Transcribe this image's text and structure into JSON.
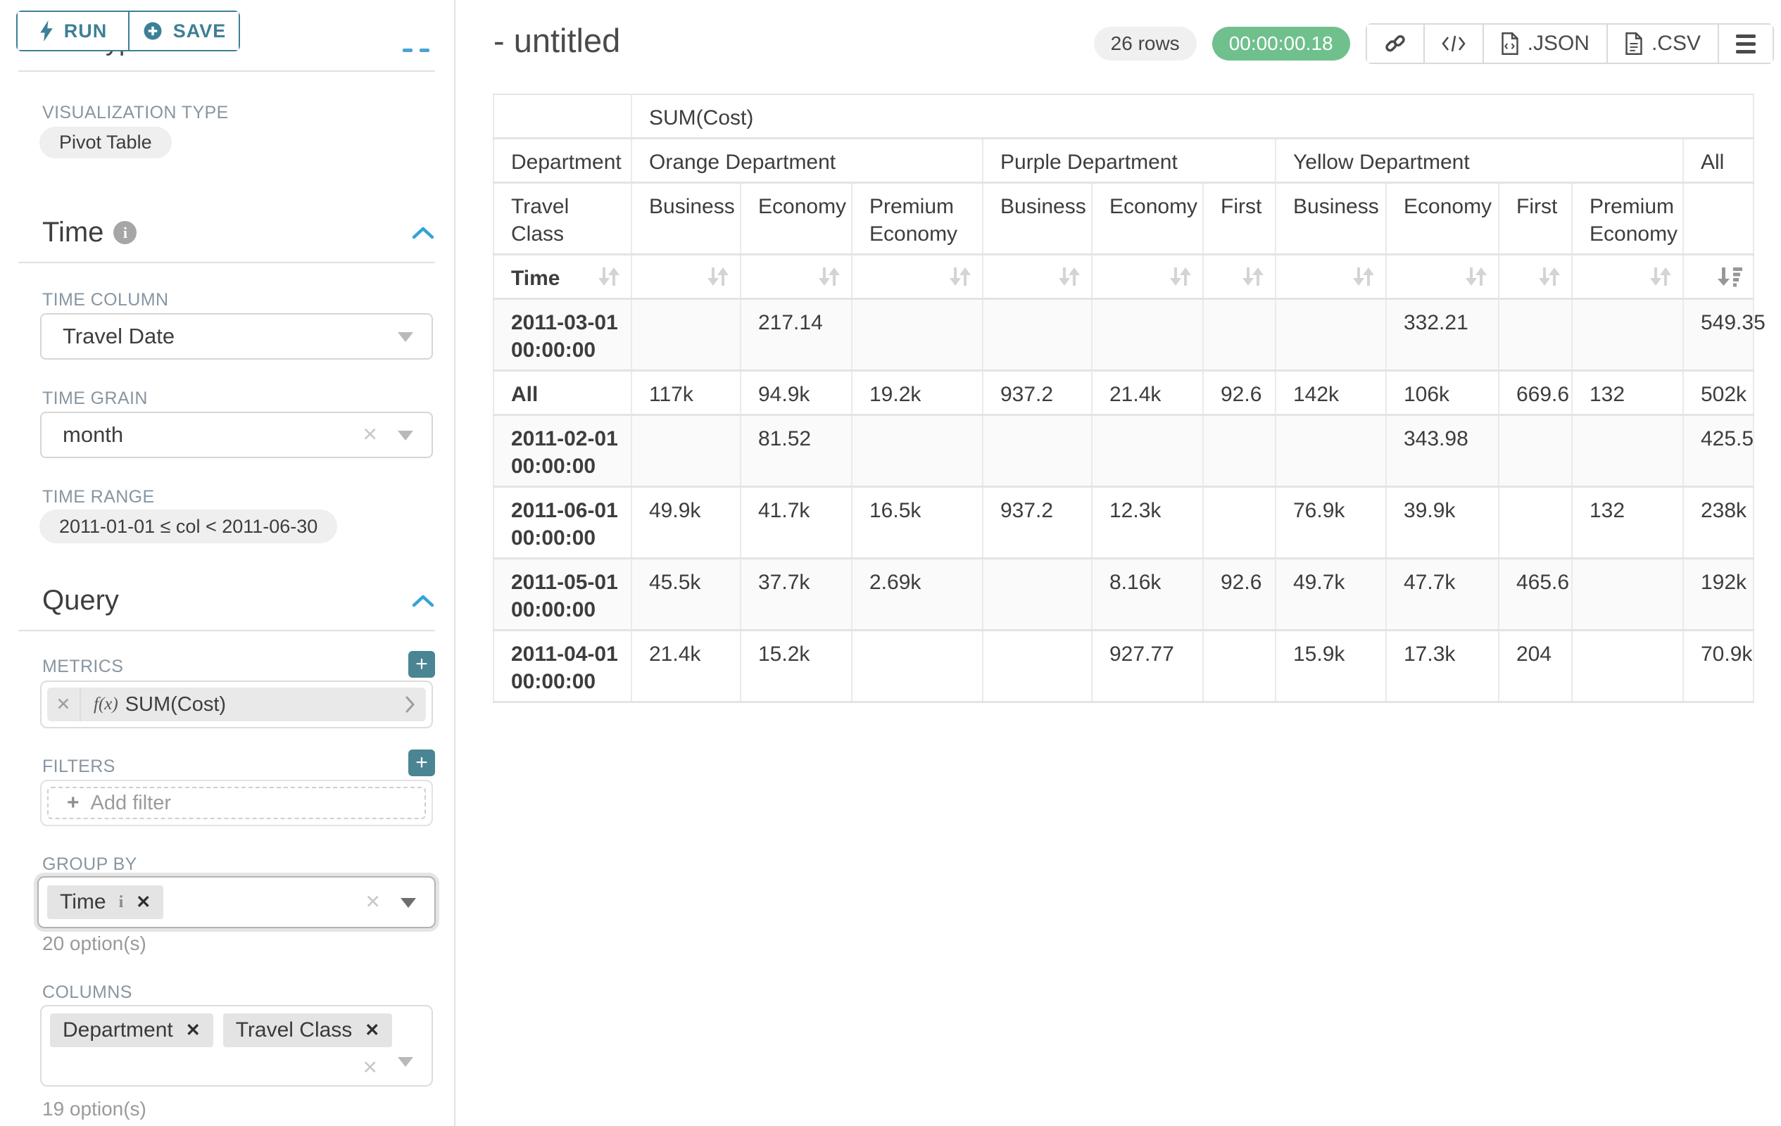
{
  "colors": {
    "accent": "#3d7f96",
    "accent_fill": "#4a8594",
    "section_caret_blue": "#35a3d6",
    "timer_green": "#6fc08d"
  },
  "sidebar": {
    "run_button": "RUN",
    "save_button": "SAVE",
    "chart_type_heading": "Chart Type",
    "visualization_type_label": "VISUALIZATION TYPE",
    "visualization_type_value": "Pivot Table",
    "time_section": {
      "title": "Time",
      "time_column_label": "TIME COLUMN",
      "time_column_value": "Travel Date",
      "time_grain_label": "TIME GRAIN",
      "time_grain_value": "month",
      "time_range_label": "TIME RANGE",
      "time_range_value": "2011-01-01 ≤ col < 2011-06-30"
    },
    "query_section": {
      "title": "Query",
      "metrics_label": "METRICS",
      "metric_fx": "f(x)",
      "metric_name": "SUM(Cost)",
      "filters_label": "FILTERS",
      "add_filter_placeholder": "Add filter",
      "group_by_label": "GROUP BY",
      "group_by_values": [
        "Time"
      ],
      "group_by_hint": "20 option(s)",
      "columns_label": "COLUMNS",
      "columns_values": [
        "Department",
        "Travel Class"
      ],
      "columns_hint": "19 option(s)"
    }
  },
  "header": {
    "title": "- untitled",
    "rows_badge": "26 rows",
    "timer_badge": "00:00:00.18",
    "json_button": ".JSON",
    "csv_button": ".CSV"
  },
  "chart_data": {
    "type": "table",
    "metric_header": "SUM(Cost)",
    "department_label": "Department",
    "travel_class_label": "Travel Class",
    "time_label": "Time",
    "department_groups": [
      {
        "label": "Orange Department",
        "span": 3
      },
      {
        "label": "Purple Department",
        "span": 3
      },
      {
        "label": "Yellow Department",
        "span": 4
      },
      {
        "label": "All",
        "span": 1
      }
    ],
    "class_columns": [
      "Business",
      "Economy",
      "Premium Economy",
      "Business",
      "Economy",
      "First",
      "Business",
      "Economy",
      "First",
      "Premium Economy",
      ""
    ],
    "rows": [
      {
        "label": "2011-03-01 00:00:00",
        "values": [
          "",
          "217.14",
          "",
          "",
          "",
          "",
          "",
          "332.21",
          "",
          "",
          "549.35"
        ]
      },
      {
        "label": "All",
        "values": [
          "117k",
          "94.9k",
          "19.2k",
          "937.2",
          "21.4k",
          "92.6",
          "142k",
          "106k",
          "669.6",
          "132",
          "502k"
        ]
      },
      {
        "label": "2011-02-01 00:00:00",
        "values": [
          "",
          "81.52",
          "",
          "",
          "",
          "",
          "",
          "343.98",
          "",
          "",
          "425.5"
        ]
      },
      {
        "label": "2011-06-01 00:00:00",
        "values": [
          "49.9k",
          "41.7k",
          "16.5k",
          "937.2",
          "12.3k",
          "",
          "76.9k",
          "39.9k",
          "",
          "132",
          "238k"
        ]
      },
      {
        "label": "2011-05-01 00:00:00",
        "values": [
          "45.5k",
          "37.7k",
          "2.69k",
          "",
          "8.16k",
          "92.6",
          "49.7k",
          "47.7k",
          "465.6",
          "",
          "192k"
        ]
      },
      {
        "label": "2011-04-01 00:00:00",
        "values": [
          "21.4k",
          "15.2k",
          "",
          "",
          "927.77",
          "",
          "15.9k",
          "17.3k",
          "204",
          "",
          "70.9k"
        ]
      }
    ]
  }
}
